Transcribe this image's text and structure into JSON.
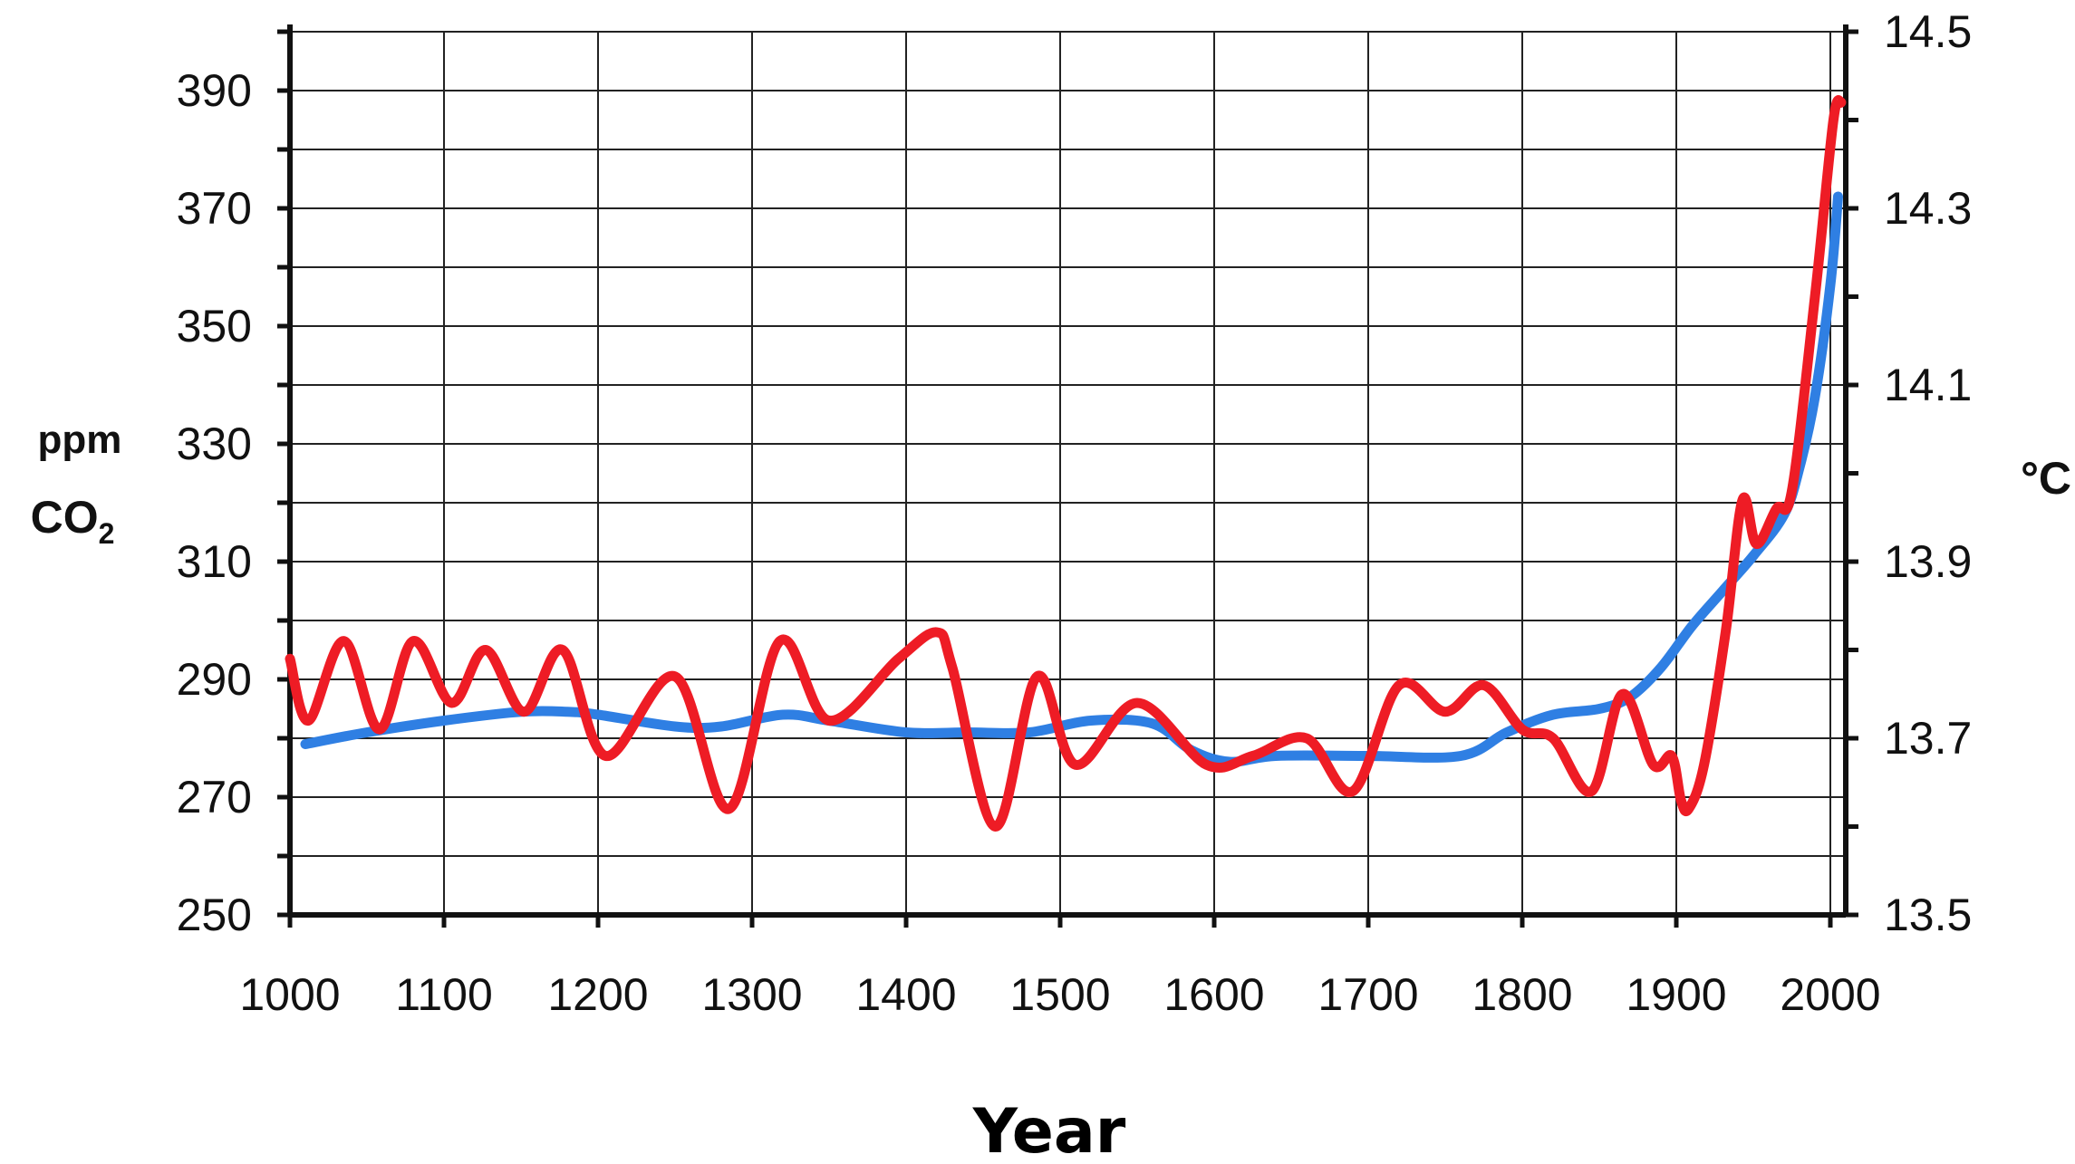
{
  "chart_data": {
    "type": "line",
    "xlabel": "Year",
    "ylabel_left": {
      "top": "ppm",
      "main": "CO",
      "subscript": "2"
    },
    "ylabel_right": "°C",
    "xlim": [
      1000,
      2010
    ],
    "ylim_left": [
      250,
      400
    ],
    "ylim_right": [
      13.5,
      14.5
    ],
    "grid": true,
    "x_ticks": [
      1000,
      1100,
      1200,
      1300,
      1400,
      1500,
      1600,
      1700,
      1800,
      1900,
      2000
    ],
    "x_tick_labels": [
      "1000",
      "1100",
      "1200",
      "1300",
      "1400",
      "1500",
      "1600",
      "1700",
      "1800",
      "1900",
      "2000"
    ],
    "y_left_ticks": [
      250,
      270,
      290,
      310,
      330,
      350,
      370,
      390
    ],
    "y_left_tick_labels": [
      "250",
      "270",
      "290",
      "310",
      "330",
      "350",
      "370",
      "390"
    ],
    "y_right_ticks": [
      13.5,
      13.7,
      13.9,
      14.1,
      14.3,
      14.5
    ],
    "y_right_tick_labels": [
      "13.5",
      "13.7",
      "13.9",
      "14.1",
      "14.3",
      "14.5"
    ],
    "colors": {
      "co2": "#2f7fe3",
      "temperature": "#ee1c25",
      "axis": "#111111",
      "grid": "#222222"
    },
    "series": [
      {
        "key": "co2",
        "axis": "left",
        "x": [
          1010,
          1050,
          1100,
          1150,
          1180,
          1200,
          1250,
          1280,
          1320,
          1350,
          1400,
          1440,
          1480,
          1520,
          1560,
          1585,
          1610,
          1640,
          1700,
          1760,
          1790,
          1820,
          1850,
          1870,
          1890,
          1910,
          1930,
          1950,
          1970,
          1980,
          1990,
          2000,
          2005
        ],
        "values": [
          279,
          281,
          283,
          284.5,
          284.5,
          284,
          282,
          282,
          284,
          283,
          281,
          281,
          281,
          283,
          282.5,
          278,
          276,
          277,
          277,
          277,
          281,
          284,
          285,
          287,
          292,
          299,
          305,
          311,
          318,
          326,
          338,
          357,
          372
        ]
      },
      {
        "key": "temperature",
        "axis": "right",
        "x": [
          1000,
          1012,
          1035,
          1058,
          1080,
          1105,
          1127,
          1152,
          1177,
          1205,
          1250,
          1285,
          1318,
          1350,
          1395,
          1420,
          1430,
          1458,
          1485,
          1510,
          1550,
          1595,
          1625,
          1660,
          1690,
          1720,
          1750,
          1775,
          1800,
          1820,
          1845,
          1865,
          1885,
          1897,
          1903,
          1908,
          1918,
          1932,
          1943,
          1952,
          1965,
          1975,
          1990,
          2002,
          2007
        ],
        "values": [
          13.79,
          13.72,
          13.81,
          13.71,
          13.81,
          13.74,
          13.8,
          13.73,
          13.8,
          13.68,
          13.77,
          13.62,
          13.81,
          13.72,
          13.79,
          13.82,
          13.78,
          13.6,
          13.77,
          13.67,
          13.74,
          13.67,
          13.68,
          13.7,
          13.64,
          13.76,
          13.73,
          13.76,
          13.71,
          13.7,
          13.64,
          13.75,
          13.67,
          13.68,
          13.63,
          13.62,
          13.67,
          13.82,
          13.97,
          13.92,
          13.96,
          13.98,
          14.2,
          14.4,
          14.42
        ]
      }
    ]
  }
}
